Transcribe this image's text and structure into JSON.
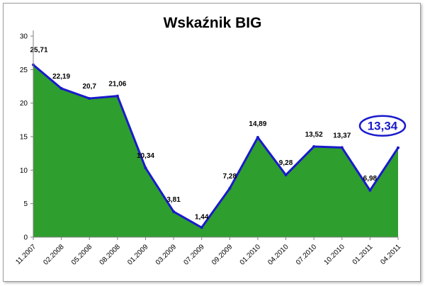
{
  "chart_data": {
    "type": "area",
    "title": "Wskaźnik BIG",
    "xlabel": "",
    "ylabel": "",
    "categories": [
      "11.2007",
      "02.2008",
      "05.2008",
      "08.2008",
      "01.2009",
      "03.2009",
      "07.2009",
      "09.2009",
      "01.2010",
      "04.2010",
      "07.2010",
      "10.2010",
      "01.2011",
      "04.2011"
    ],
    "values": [
      25.71,
      22.19,
      20.7,
      21.06,
      10.34,
      3.81,
      1.44,
      7.28,
      14.89,
      9.28,
      13.52,
      13.37,
      6.98,
      13.34
    ],
    "data_labels": [
      "25,71",
      "22,19",
      "20,7",
      "21,06",
      "10,34",
      "3,81",
      "1,44",
      "7,28",
      "14,89",
      "9,28",
      "13,52",
      "13,37",
      "6,98",
      "13,34"
    ],
    "yticks": [
      "0",
      "5",
      "10",
      "15",
      "20",
      "25",
      "30"
    ],
    "ylim": [
      0,
      30
    ],
    "grid": false,
    "legend": "none",
    "highlight_last_point": true,
    "colors": {
      "fill": "#2e9e2e",
      "line": "#1a1acc",
      "axis": "#7f7f7f",
      "highlight": "#1a1acc"
    }
  }
}
